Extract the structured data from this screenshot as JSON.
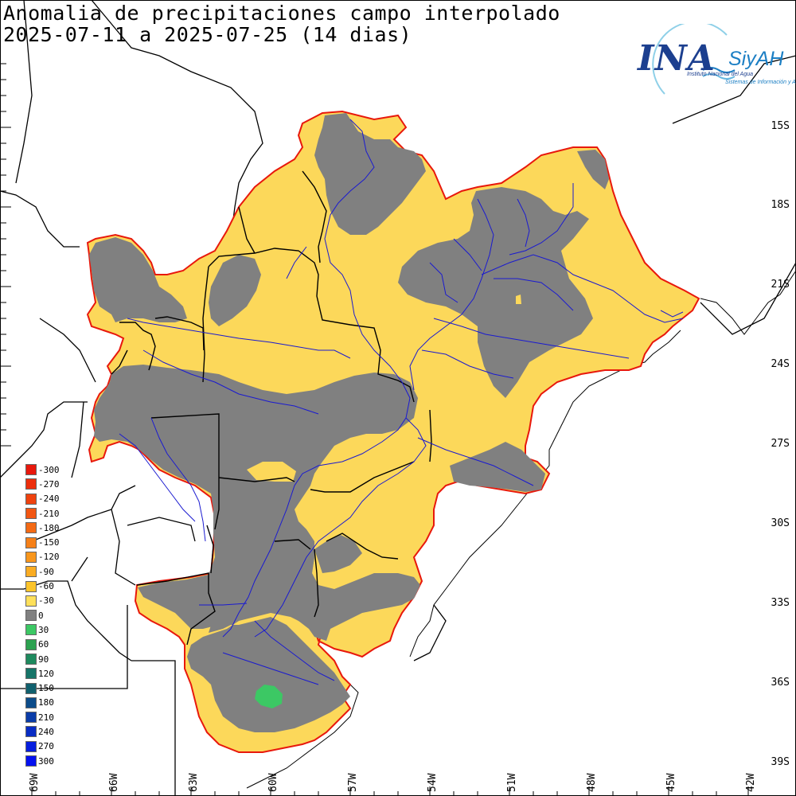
{
  "header": {
    "title_line1": "Anomalia de precipitaciones campo interpolado",
    "title_line2": "2025-07-11 a 2025-07-25 (14 dias)"
  },
  "logo": {
    "name": "INA",
    "system": "SiyAH",
    "subtitle": "Instituto Nacional del Agua",
    "subtitle2": "Sistemas de Información y Alerta Hidrológico"
  },
  "latitude_labels": [
    "15S",
    "18S",
    "21S",
    "24S",
    "27S",
    "30S",
    "33S",
    "36S",
    "39S"
  ],
  "longitude_labels": [
    "69W",
    "66W",
    "63W",
    "60W",
    "57W",
    "54W",
    "51W",
    "48W",
    "45W",
    "42W"
  ],
  "legend": {
    "items": [
      {
        "value": "-300",
        "color": "#e8180c"
      },
      {
        "value": "-270",
        "color": "#ec2e0c"
      },
      {
        "value": "-240",
        "color": "#ef420e"
      },
      {
        "value": "-210",
        "color": "#f25612"
      },
      {
        "value": "-180",
        "color": "#f46a14"
      },
      {
        "value": "-150",
        "color": "#f68018"
      },
      {
        "value": "-120",
        "color": "#f8961c"
      },
      {
        "value": "-90",
        "color": "#faac22"
      },
      {
        "value": "-60",
        "color": "#fcc42a"
      },
      {
        "value": "-30",
        "color": "#fee05a"
      },
      {
        "value": "0",
        "color": "#808080"
      },
      {
        "value": "30",
        "color": "#3cc864"
      },
      {
        "value": "60",
        "color": "#2ca250"
      },
      {
        "value": "90",
        "color": "#1e8a5e"
      },
      {
        "value": "120",
        "color": "#167468"
      },
      {
        "value": "150",
        "color": "#10606e"
      },
      {
        "value": "180",
        "color": "#0c4c8a"
      },
      {
        "value": "210",
        "color": "#0a3ca8"
      },
      {
        "value": "240",
        "color": "#082cc4"
      },
      {
        "value": "270",
        "color": "#061ede"
      },
      {
        "value": "300",
        "color": "#0410f0"
      }
    ]
  },
  "colors": {
    "negative_anomaly": "#fcd85a",
    "neutral": "#808080",
    "positive_anomaly": "#3cc864",
    "basin_outline": "#e8180c",
    "rivers": "#1a1ad0",
    "borders": "#000000"
  }
}
